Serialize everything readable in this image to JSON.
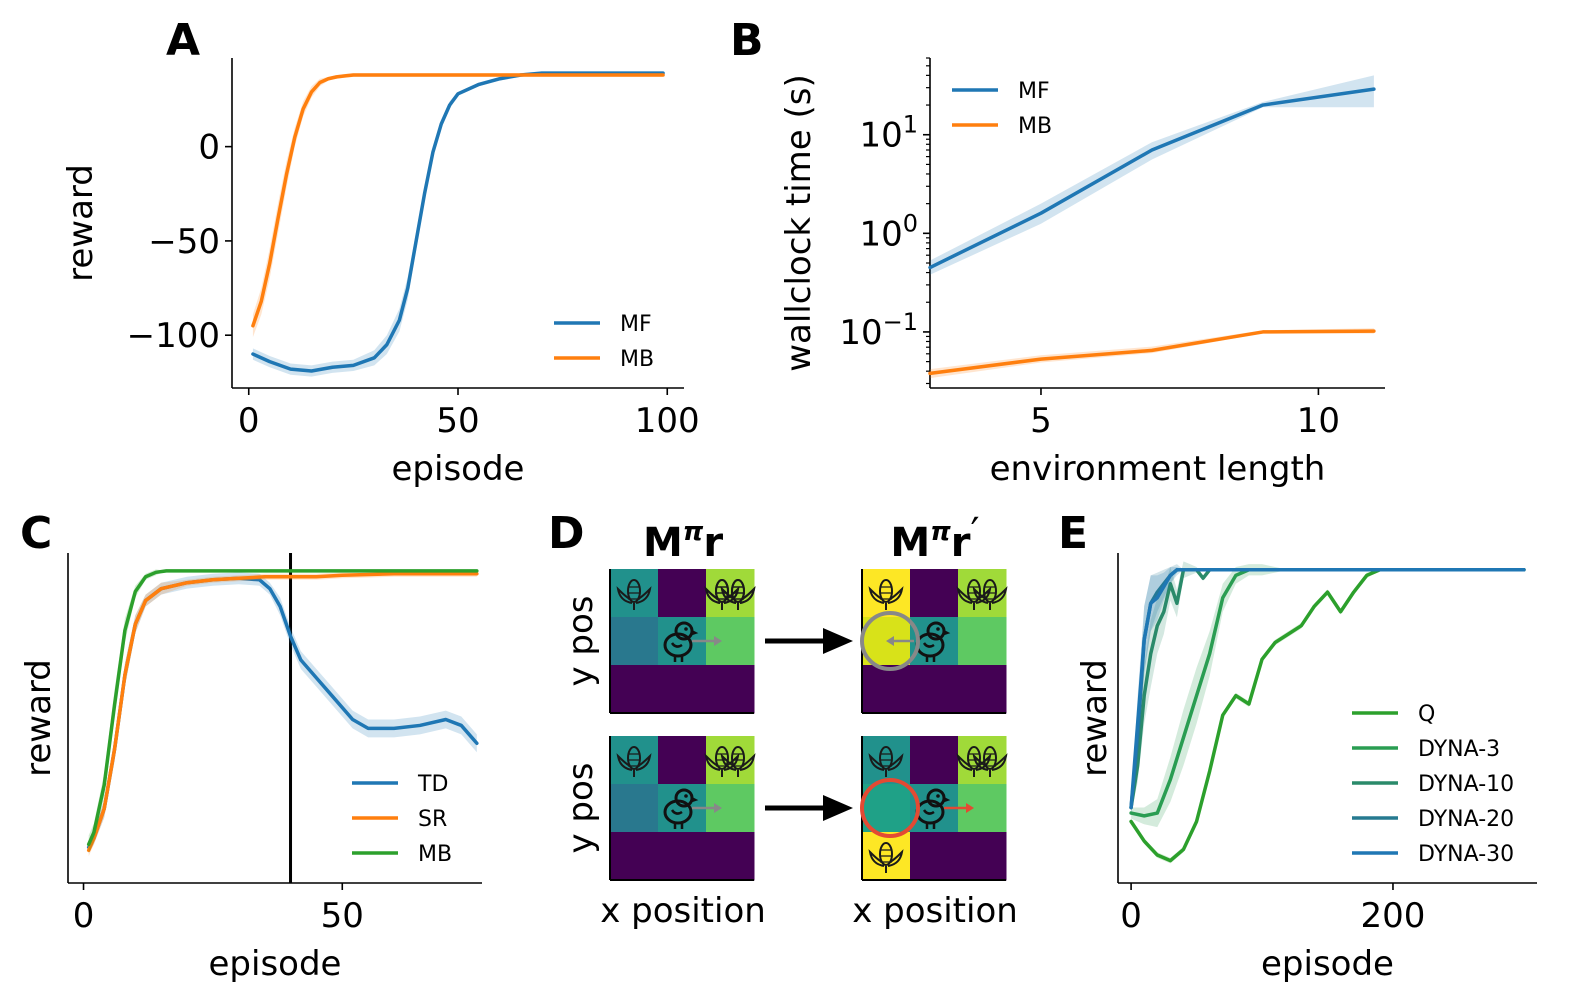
{
  "colors": {
    "blue": "#1f77b4",
    "orange": "#ff7f0e",
    "green": "#2ca02c",
    "viridis_dark": "#440154",
    "viridis_teal": "#21918c",
    "viridis_teal2": "#29788e",
    "viridis_midgreen": "#1fa187",
    "viridis_green": "#5ec962",
    "viridis_lime": "#a0da39",
    "viridis_yellow": "#fde725",
    "viridis_yellow2": "#d8e219",
    "grey": "#888888",
    "red": "#e34a33"
  },
  "chart_data": [
    {
      "id": "A",
      "panel_letter": "A",
      "type": "line",
      "xlabel": "episode",
      "ylabel": "reward",
      "xlim": [
        -4,
        104
      ],
      "ylim": [
        -128,
        47
      ],
      "xticks": [
        0,
        50,
        100
      ],
      "xtick_labels": [
        "0",
        "50",
        "100"
      ],
      "yticks": [
        -100,
        -50,
        0
      ],
      "ytick_labels": [
        "−100",
        "−50",
        "0"
      ],
      "legend": "lower-right",
      "series": [
        {
          "name": "MF",
          "color": "blue",
          "x": [
            1,
            5,
            10,
            15,
            20,
            25,
            30,
            33,
            36,
            38,
            40,
            42,
            44,
            46,
            48,
            50,
            55,
            60,
            65,
            70,
            80,
            90,
            99
          ],
          "y": [
            -110,
            -114,
            -118,
            -119,
            -117,
            -116,
            -112,
            -105,
            -92,
            -75,
            -50,
            -25,
            -3,
            12,
            22,
            28,
            33,
            36,
            38,
            39,
            39,
            39,
            39
          ],
          "band": [
            3,
            3,
            3,
            3,
            3,
            3,
            4,
            5,
            6,
            6,
            5,
            4,
            3,
            2,
            2,
            1,
            1,
            1,
            1,
            1,
            1,
            1,
            1
          ]
        },
        {
          "name": "MB",
          "color": "orange",
          "x": [
            1,
            3,
            5,
            7,
            9,
            11,
            13,
            15,
            17,
            19,
            21,
            23,
            25,
            30,
            40,
            50,
            60,
            70,
            80,
            90,
            99
          ],
          "y": [
            -95,
            -82,
            -62,
            -38,
            -15,
            5,
            20,
            29,
            34,
            36,
            37,
            37.5,
            38,
            38,
            38,
            38,
            38,
            38,
            38,
            38,
            38
          ],
          "band": [
            6,
            7,
            8,
            8,
            7,
            5,
            4,
            3,
            2,
            1,
            1,
            1,
            1,
            1,
            1,
            1,
            1,
            1,
            1,
            1,
            1
          ]
        }
      ]
    },
    {
      "id": "B",
      "panel_letter": "B",
      "type": "line",
      "yscale": "log",
      "xlabel": "environment length",
      "ylabel": "wallclock time (s)",
      "xlim": [
        3,
        11.2
      ],
      "ylim": [
        0.027,
        60
      ],
      "xticks": [
        5,
        10
      ],
      "xtick_labels": [
        "5",
        "10"
      ],
      "yticks": [
        0.1,
        1,
        10
      ],
      "ytick_labels": [
        {
          "base": "10",
          "exp": "−1"
        },
        {
          "base": "10",
          "exp": "0"
        },
        {
          "base": "10",
          "exp": "1"
        }
      ],
      "legend": "upper-left",
      "series": [
        {
          "name": "MF",
          "color": "blue",
          "x": [
            3,
            5,
            7,
            9,
            11
          ],
          "y": [
            0.45,
            1.6,
            7,
            20,
            29
          ],
          "band_low": [
            0.38,
            1.25,
            5.6,
            19,
            19
          ],
          "band_high": [
            0.53,
            2.0,
            8.4,
            21.5,
            40
          ]
        },
        {
          "name": "MB",
          "color": "orange",
          "x": [
            3,
            5,
            7,
            9,
            11
          ],
          "y": [
            0.038,
            0.053,
            0.065,
            0.1,
            0.102
          ],
          "band_low": [
            0.034,
            0.049,
            0.061,
            0.097,
            0.096
          ],
          "band_high": [
            0.042,
            0.058,
            0.071,
            0.104,
            0.109
          ]
        }
      ]
    },
    {
      "id": "C",
      "panel_letter": "C",
      "type": "line",
      "xlabel": "episode",
      "ylabel": "reward",
      "xlim": [
        -3,
        77
      ],
      "ylim": [
        -1.05,
        0.06
      ],
      "xticks": [
        0,
        50
      ],
      "xtick_labels": [
        "0",
        "50"
      ],
      "vline": 40,
      "legend": "lower-right",
      "series": [
        {
          "name": "TD",
          "color": "blue",
          "x": [
            1,
            2,
            4,
            6,
            8,
            10,
            12,
            15,
            20,
            25,
            30,
            34,
            36,
            38,
            40,
            42,
            45,
            48,
            52,
            55,
            60,
            65,
            70,
            73,
            75,
            76
          ],
          "y": [
            -0.93,
            -0.9,
            -0.8,
            -0.6,
            -0.35,
            -0.18,
            -0.1,
            -0.06,
            -0.04,
            -0.03,
            -0.025,
            -0.03,
            -0.06,
            -0.12,
            -0.22,
            -0.3,
            -0.36,
            -0.42,
            -0.5,
            -0.53,
            -0.53,
            -0.52,
            -0.5,
            -0.52,
            -0.56,
            -0.58
          ],
          "band": [
            0.02,
            0.02,
            0.03,
            0.04,
            0.04,
            0.03,
            0.02,
            0.02,
            0.02,
            0.02,
            0.02,
            0.02,
            0.02,
            0.03,
            0.03,
            0.03,
            0.03,
            0.03,
            0.03,
            0.03,
            0.03,
            0.03,
            0.03,
            0.03,
            0.03,
            0.03
          ]
        },
        {
          "name": "SR",
          "color": "orange",
          "x": [
            1,
            2,
            4,
            6,
            8,
            10,
            12,
            15,
            20,
            25,
            30,
            35,
            40,
            45,
            50,
            60,
            70,
            76
          ],
          "y": [
            -0.94,
            -0.9,
            -0.8,
            -0.6,
            -0.35,
            -0.18,
            -0.1,
            -0.06,
            -0.04,
            -0.03,
            -0.025,
            -0.02,
            -0.02,
            -0.02,
            -0.015,
            -0.01,
            -0.01,
            -0.01
          ],
          "band": [
            0.02,
            0.02,
            0.03,
            0.04,
            0.04,
            0.03,
            0.02,
            0.02,
            0.01,
            0.01,
            0.01,
            0.01,
            0.01,
            0.01,
            0.01,
            0.01,
            0.01,
            0.01
          ]
        },
        {
          "name": "MB",
          "color": "green",
          "x": [
            1,
            2,
            4,
            6,
            8,
            10,
            12,
            14,
            16,
            20,
            30,
            40,
            50,
            60,
            70,
            76
          ],
          "y": [
            -0.92,
            -0.88,
            -0.72,
            -0.45,
            -0.2,
            -0.07,
            -0.02,
            -0.005,
            0,
            0,
            0,
            0,
            0,
            0,
            0,
            0
          ],
          "band": [
            0.03,
            0.03,
            0.04,
            0.05,
            0.04,
            0.02,
            0.01,
            0.01,
            0,
            0,
            0,
            0,
            0,
            0,
            0,
            0
          ]
        }
      ]
    },
    {
      "id": "E",
      "panel_letter": "E",
      "type": "line",
      "xlabel": "episode",
      "ylabel": "reward",
      "xlim": [
        -10,
        310
      ],
      "ylim": [
        -1.12,
        0.06
      ],
      "xticks": [
        0,
        200
      ],
      "xtick_labels": [
        "0",
        "200"
      ],
      "legend": "lower-right",
      "series": [
        {
          "name": "Q",
          "color": "#2ca02c",
          "x": [
            0,
            10,
            20,
            30,
            40,
            50,
            60,
            70,
            80,
            90,
            100,
            110,
            120,
            130,
            140,
            150,
            160,
            170,
            180,
            190,
            200,
            250,
            300
          ],
          "y": [
            -0.9,
            -0.97,
            -1.02,
            -1.04,
            -1.0,
            -0.9,
            -0.72,
            -0.52,
            -0.45,
            -0.48,
            -0.32,
            -0.26,
            -0.23,
            -0.2,
            -0.13,
            -0.08,
            -0.15,
            -0.08,
            -0.02,
            0,
            0,
            0,
            0
          ],
          "band": [
            0.01,
            0.01,
            0.01,
            0.01,
            0.01,
            0.01,
            0.01,
            0.01,
            0.01,
            0.01,
            0.01,
            0.01,
            0.01,
            0.01,
            0.01,
            0.01,
            0.01,
            0.01,
            0.01,
            0,
            0,
            0,
            0
          ]
        },
        {
          "name": "DYNA-3",
          "color": "#2a9d52",
          "x": [
            0,
            10,
            20,
            30,
            40,
            50,
            60,
            70,
            80,
            90,
            100,
            110,
            120,
            130,
            140,
            300
          ],
          "y": [
            -0.87,
            -0.88,
            -0.87,
            -0.75,
            -0.6,
            -0.45,
            -0.3,
            -0.1,
            -0.02,
            0,
            0,
            0,
            0,
            0,
            0,
            0
          ],
          "band": [
            0.02,
            0.03,
            0.05,
            0.08,
            0.1,
            0.1,
            0.08,
            0.05,
            0.03,
            0.02,
            0.02,
            0.01,
            0,
            0,
            0,
            0
          ]
        },
        {
          "name": "DYNA-10",
          "color": "#2a8a6a",
          "x": [
            0,
            5,
            10,
            15,
            20,
            25,
            30,
            35,
            40,
            45,
            50,
            55,
            60,
            300
          ],
          "y": [
            -0.85,
            -0.7,
            -0.45,
            -0.3,
            -0.2,
            -0.15,
            -0.05,
            -0.12,
            0,
            0,
            0,
            -0.03,
            0,
            0
          ],
          "band": [
            0.02,
            0.06,
            0.1,
            0.12,
            0.1,
            0.08,
            0.06,
            0.05,
            0.03,
            0.02,
            0.01,
            0.01,
            0,
            0
          ]
        },
        {
          "name": "DYNA-20",
          "color": "#267a90",
          "x": [
            0,
            5,
            10,
            15,
            20,
            25,
            30,
            35,
            40,
            300
          ],
          "y": [
            -0.85,
            -0.6,
            -0.25,
            -0.12,
            -0.08,
            -0.05,
            -0.02,
            0,
            0,
            0
          ],
          "band": [
            0.02,
            0.1,
            0.12,
            0.1,
            0.07,
            0.05,
            0.03,
            0.02,
            0,
            0
          ]
        },
        {
          "name": "DYNA-30",
          "color": "#1f77b4",
          "x": [
            0,
            5,
            10,
            15,
            20,
            25,
            30,
            35,
            40,
            50,
            300
          ],
          "y": [
            -0.85,
            -0.55,
            -0.25,
            -0.12,
            -0.1,
            -0.06,
            -0.02,
            0,
            0,
            0,
            0
          ],
          "band": [
            0.02,
            0.1,
            0.12,
            0.1,
            0.08,
            0.05,
            0.03,
            0.01,
            0,
            0,
            0
          ]
        }
      ]
    }
  ],
  "panel_d": {
    "letter": "D",
    "titles": [
      {
        "base": "M",
        "sup": "π",
        "vec": "r",
        "prime": ""
      },
      {
        "base": "M",
        "sup": "π",
        "vec": "r",
        "prime": "′"
      }
    ],
    "ylabel": "y pos",
    "xlabel": "x position",
    "grids": [
      {
        "cells": [
          [
            "viridis_teal",
            "viridis_dark",
            "viridis_lime"
          ],
          [
            "viridis_teal2",
            "viridis_teal",
            "viridis_green"
          ],
          [
            "viridis_dark",
            "viridis_dark",
            "viridis_dark"
          ]
        ],
        "corn": [
          [
            0,
            0
          ],
          [
            0,
            2
          ],
          [
            0,
            2
          ]
        ],
        "chick": [
          1,
          1
        ],
        "arrow": "right-grey",
        "circle": null
      },
      {
        "cells": [
          [
            "viridis_yellow",
            "viridis_dark",
            "viridis_lime"
          ],
          [
            "viridis_yellow2",
            "viridis_teal",
            "viridis_green"
          ],
          [
            "viridis_dark",
            "viridis_dark",
            "viridis_dark"
          ]
        ],
        "corn": [
          [
            0,
            0
          ],
          [
            0,
            2
          ]
        ],
        "chick": [
          1,
          1
        ],
        "arrow": "left-grey",
        "circle": "grey"
      },
      {
        "cells": [
          [
            "viridis_teal",
            "viridis_dark",
            "viridis_lime"
          ],
          [
            "viridis_teal2",
            "viridis_teal",
            "viridis_green"
          ],
          [
            "viridis_dark",
            "viridis_dark",
            "viridis_dark"
          ]
        ],
        "corn": [
          [
            0,
            0
          ],
          [
            0,
            2
          ]
        ],
        "chick": [
          1,
          1
        ],
        "arrow": "right-grey",
        "circle": null
      },
      {
        "cells": [
          [
            "viridis_teal",
            "viridis_dark",
            "viridis_lime"
          ],
          [
            "viridis_midgreen",
            "viridis_teal",
            "viridis_green"
          ],
          [
            "viridis_yellow",
            "viridis_dark",
            "viridis_dark"
          ]
        ],
        "corn": [
          [
            0,
            0
          ],
          [
            0,
            2
          ],
          [
            2,
            0
          ]
        ],
        "chick": [
          1,
          1
        ],
        "arrow": "right-red",
        "circle": "red"
      }
    ]
  }
}
